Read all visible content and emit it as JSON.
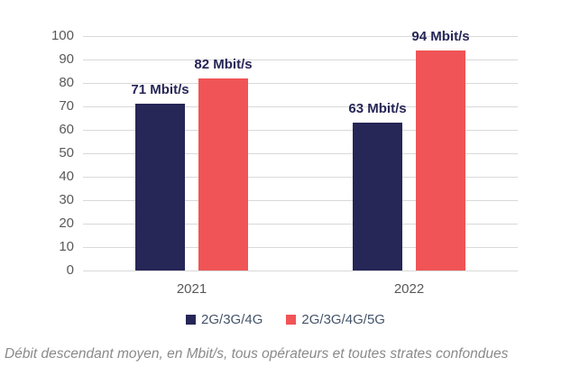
{
  "chart_data": {
    "type": "bar",
    "categories": [
      "2021",
      "2022"
    ],
    "series": [
      {
        "name": "2G/3G/4G",
        "color": "#262657",
        "values": [
          71,
          63
        ],
        "data_labels": [
          "71 Mbit/s",
          "63 Mbit/s"
        ]
      },
      {
        "name": "2G/3G/4G/5G",
        "color": "#f05456",
        "values": [
          82,
          94
        ],
        "data_labels": [
          "82 Mbit/s",
          "94 Mbit/s"
        ]
      }
    ],
    "title": "",
    "xlabel": "",
    "ylabel": "",
    "ylim": [
      0,
      100
    ],
    "yticks": [
      0,
      10,
      20,
      30,
      40,
      50,
      60,
      70,
      80,
      90,
      100
    ],
    "grid": true,
    "legend_position": "bottom"
  },
  "caption": "Débit descendant moyen, en Mbit/s, tous opérateurs et toutes strates confondues",
  "colors": {
    "gridline": "#d9d9d9",
    "axis_text": "#595959",
    "legend_text": "#44546a",
    "value_label_text": "#262657",
    "caption_text": "#8a8a8a"
  }
}
